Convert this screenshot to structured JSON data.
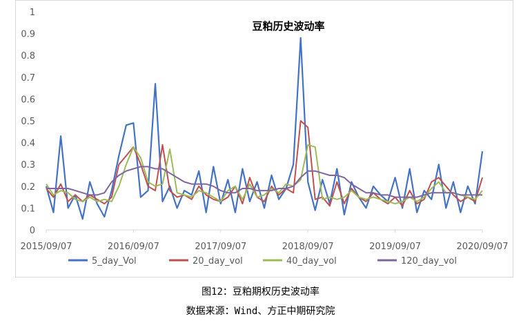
{
  "chart_data": {
    "type": "line",
    "title": "豆粕历史波动率",
    "xlabel": "",
    "ylabel": "",
    "ylim": [
      0,
      1
    ],
    "yticks": [
      "0",
      "0.1",
      "0.2",
      "0.3",
      "0.4",
      "0.5",
      "0.6",
      "0.7",
      "0.8",
      "0.9",
      "1"
    ],
    "xticks": [
      "2015/09/07",
      "2016/09/07",
      "2017/09/07",
      "2018/09/07",
      "2019/09/07",
      "2020/09/07"
    ],
    "x_range": [
      "2015/09/07",
      "2020/09/07"
    ],
    "x": [
      "2015/09",
      "2015/10",
      "2015/11",
      "2015/12",
      "2016/01",
      "2016/02",
      "2016/03",
      "2016/04",
      "2016/05",
      "2016/06",
      "2016/07",
      "2016/08",
      "2016/09",
      "2016/10",
      "2016/11",
      "2016/12",
      "2017/01",
      "2017/02",
      "2017/03",
      "2017/04",
      "2017/05",
      "2017/06",
      "2017/07",
      "2017/08",
      "2017/09",
      "2017/10",
      "2017/11",
      "2017/12",
      "2018/01",
      "2018/02",
      "2018/03",
      "2018/04",
      "2018/05",
      "2018/06",
      "2018/07",
      "2018/08",
      "2018/09",
      "2018/10",
      "2018/11",
      "2018/12",
      "2019/01",
      "2019/02",
      "2019/03",
      "2019/04",
      "2019/05",
      "2019/06",
      "2019/07",
      "2019/08",
      "2019/09",
      "2019/10",
      "2019/11",
      "2019/12",
      "2020/01",
      "2020/02",
      "2020/03",
      "2020/04",
      "2020/05",
      "2020/06",
      "2020/07",
      "2020/08",
      "2020/09"
    ],
    "legend_position": "bottom",
    "grid": false,
    "series": [
      {
        "name": "5_day_Vol",
        "color": "#4472c4",
        "values": [
          0.2,
          0.08,
          0.43,
          0.1,
          0.16,
          0.05,
          0.22,
          0.12,
          0.06,
          0.18,
          0.34,
          0.48,
          0.49,
          0.15,
          0.18,
          0.67,
          0.13,
          0.2,
          0.1,
          0.18,
          0.16,
          0.27,
          0.08,
          0.29,
          0.12,
          0.23,
          0.08,
          0.28,
          0.13,
          0.22,
          0.1,
          0.25,
          0.14,
          0.19,
          0.3,
          0.88,
          0.22,
          0.09,
          0.23,
          0.12,
          0.28,
          0.07,
          0.22,
          0.15,
          0.1,
          0.2,
          0.16,
          0.13,
          0.24,
          0.1,
          0.28,
          0.08,
          0.18,
          0.14,
          0.3,
          0.1,
          0.22,
          0.08,
          0.2,
          0.12,
          0.36
        ]
      },
      {
        "name": "20_day_vol",
        "color": "#c0504d",
        "values": [
          0.19,
          0.15,
          0.21,
          0.13,
          0.16,
          0.13,
          0.16,
          0.14,
          0.12,
          0.15,
          0.3,
          0.34,
          0.38,
          0.3,
          0.2,
          0.18,
          0.39,
          0.18,
          0.15,
          0.16,
          0.14,
          0.2,
          0.16,
          0.14,
          0.13,
          0.15,
          0.2,
          0.12,
          0.24,
          0.15,
          0.13,
          0.2,
          0.16,
          0.19,
          0.17,
          0.5,
          0.47,
          0.14,
          0.15,
          0.11,
          0.22,
          0.12,
          0.19,
          0.15,
          0.13,
          0.17,
          0.14,
          0.12,
          0.15,
          0.11,
          0.18,
          0.12,
          0.14,
          0.22,
          0.24,
          0.2,
          0.16,
          0.13,
          0.15,
          0.13,
          0.24
        ]
      },
      {
        "name": "40_day_vol",
        "color": "#9bbb59",
        "values": [
          0.21,
          0.16,
          0.18,
          0.17,
          0.14,
          0.13,
          0.15,
          0.13,
          0.14,
          0.13,
          0.2,
          0.3,
          0.38,
          0.33,
          0.22,
          0.2,
          0.21,
          0.37,
          0.17,
          0.16,
          0.15,
          0.18,
          0.17,
          0.15,
          0.13,
          0.18,
          0.2,
          0.14,
          0.21,
          0.15,
          0.16,
          0.19,
          0.17,
          0.21,
          0.2,
          0.23,
          0.39,
          0.38,
          0.14,
          0.15,
          0.14,
          0.15,
          0.18,
          0.15,
          0.14,
          0.15,
          0.14,
          0.13,
          0.12,
          0.13,
          0.15,
          0.13,
          0.15,
          0.19,
          0.22,
          0.17,
          0.17,
          0.16,
          0.15,
          0.14,
          0.18
        ]
      },
      {
        "name": "120_day_vol",
        "color": "#8064a2",
        "values": [
          0.19,
          0.19,
          0.19,
          0.19,
          0.18,
          0.17,
          0.16,
          0.16,
          0.17,
          0.22,
          0.25,
          0.27,
          0.28,
          0.29,
          0.29,
          0.28,
          0.28,
          0.26,
          0.24,
          0.22,
          0.21,
          0.21,
          0.21,
          0.2,
          0.18,
          0.17,
          0.17,
          0.19,
          0.19,
          0.18,
          0.18,
          0.18,
          0.19,
          0.19,
          0.2,
          0.24,
          0.27,
          0.27,
          0.26,
          0.25,
          0.25,
          0.24,
          0.21,
          0.19,
          0.17,
          0.17,
          0.16,
          0.16,
          0.15,
          0.15,
          0.15,
          0.15,
          0.16,
          0.17,
          0.17,
          0.17,
          0.17,
          0.16,
          0.16,
          0.16,
          0.16
        ]
      }
    ]
  },
  "caption": "图12：豆粕期权历史波动率",
  "source": "数据来源：Wind、方正中期研究院"
}
